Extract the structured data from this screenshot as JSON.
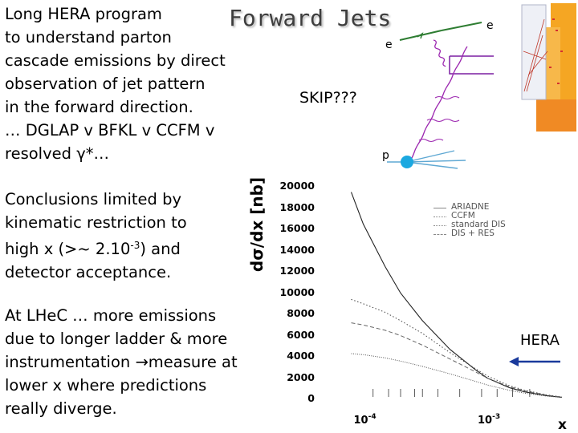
{
  "slide": {
    "title": "Forward Jets",
    "intro_lines": [
      "Long HERA program",
      "to understand parton",
      "cascade emissions by direct",
      "observation of jet pattern",
      "in the forward direction.",
      "… DGLAP v BFKL v CCFM v",
      "resolved γ*…"
    ],
    "conclusion_lines": [
      "Conclusions limited by",
      "kinematic restriction to",
      "high x (>~ 2.10",
      "detector acceptance."
    ],
    "conclusion_exponent": "-3",
    "conclusion_tail": ") and",
    "lhec_lines": [
      "At LHeC … more emissions",
      "due to longer ladder & more",
      "instrumentation →measure at",
      "lower x where predictions",
      "really diverge."
    ],
    "skip_text": "SKIP???",
    "hera_label": "HERA"
  },
  "diagram": {
    "electron_in_label": "e",
    "electron_out_label": "e",
    "proton_label": "p",
    "electron_color": "#2e7d32",
    "gluon_color": "#9c27b0",
    "proton_color": "#1ba8e0",
    "jet_color": "#7b1fa2"
  },
  "chart_data": {
    "type": "line",
    "ylabel": "dσ/dx [nb]",
    "xlabel": "x",
    "x_scale": "log",
    "xticks": [
      {
        "base": "10",
        "exp": "-4",
        "value": 0.0001
      },
      {
        "base": "10",
        "exp": "-3",
        "value": 0.001
      }
    ],
    "yticks": [
      "0",
      "2000",
      "4000",
      "6000",
      "8000",
      "10000",
      "12000",
      "14000",
      "16000",
      "18000",
      "20000"
    ],
    "ylim": [
      0,
      20000
    ],
    "xlim": [
      5e-05,
      0.004
    ],
    "legend": [
      "ARIADNE",
      "CCFM",
      "standard DIS",
      "DIS + RES"
    ],
    "legend_placement": "top-right",
    "series": [
      {
        "name": "ARIADNE",
        "x": [
          8e-05,
          0.0001,
          0.00015,
          0.0002,
          0.0003,
          0.0005,
          0.0008,
          0.001,
          0.0015,
          0.002,
          0.003,
          0.004
        ],
        "y": [
          19500,
          16500,
          12500,
          10000,
          7400,
          4700,
          2800,
          2000,
          1100,
          700,
          350,
          200
        ]
      },
      {
        "name": "CCFM",
        "x": [
          8e-05,
          0.0001,
          0.00015,
          0.0002,
          0.0003,
          0.0005,
          0.0008,
          0.001,
          0.0015,
          0.002,
          0.003,
          0.004
        ],
        "y": [
          9400,
          9000,
          8200,
          7400,
          6200,
          4400,
          2900,
          2200,
          1300,
          850,
          420,
          230
        ]
      },
      {
        "name": "standard DIS",
        "x": [
          8e-05,
          0.0001,
          0.00015,
          0.0002,
          0.0003,
          0.0005,
          0.0008,
          0.001,
          0.0015,
          0.002,
          0.003,
          0.004
        ],
        "y": [
          4300,
          4200,
          3900,
          3600,
          3100,
          2400,
          1700,
          1350,
          850,
          580,
          300,
          170
        ]
      },
      {
        "name": "DIS + RES",
        "x": [
          8e-05,
          0.0001,
          0.00015,
          0.0002,
          0.0003,
          0.0005,
          0.0008,
          0.001,
          0.0015,
          0.002,
          0.003,
          0.004
        ],
        "y": [
          7200,
          7000,
          6500,
          6000,
          5100,
          3800,
          2600,
          2000,
          1200,
          800,
          400,
          220
        ]
      }
    ],
    "arrow_direction": "left"
  }
}
